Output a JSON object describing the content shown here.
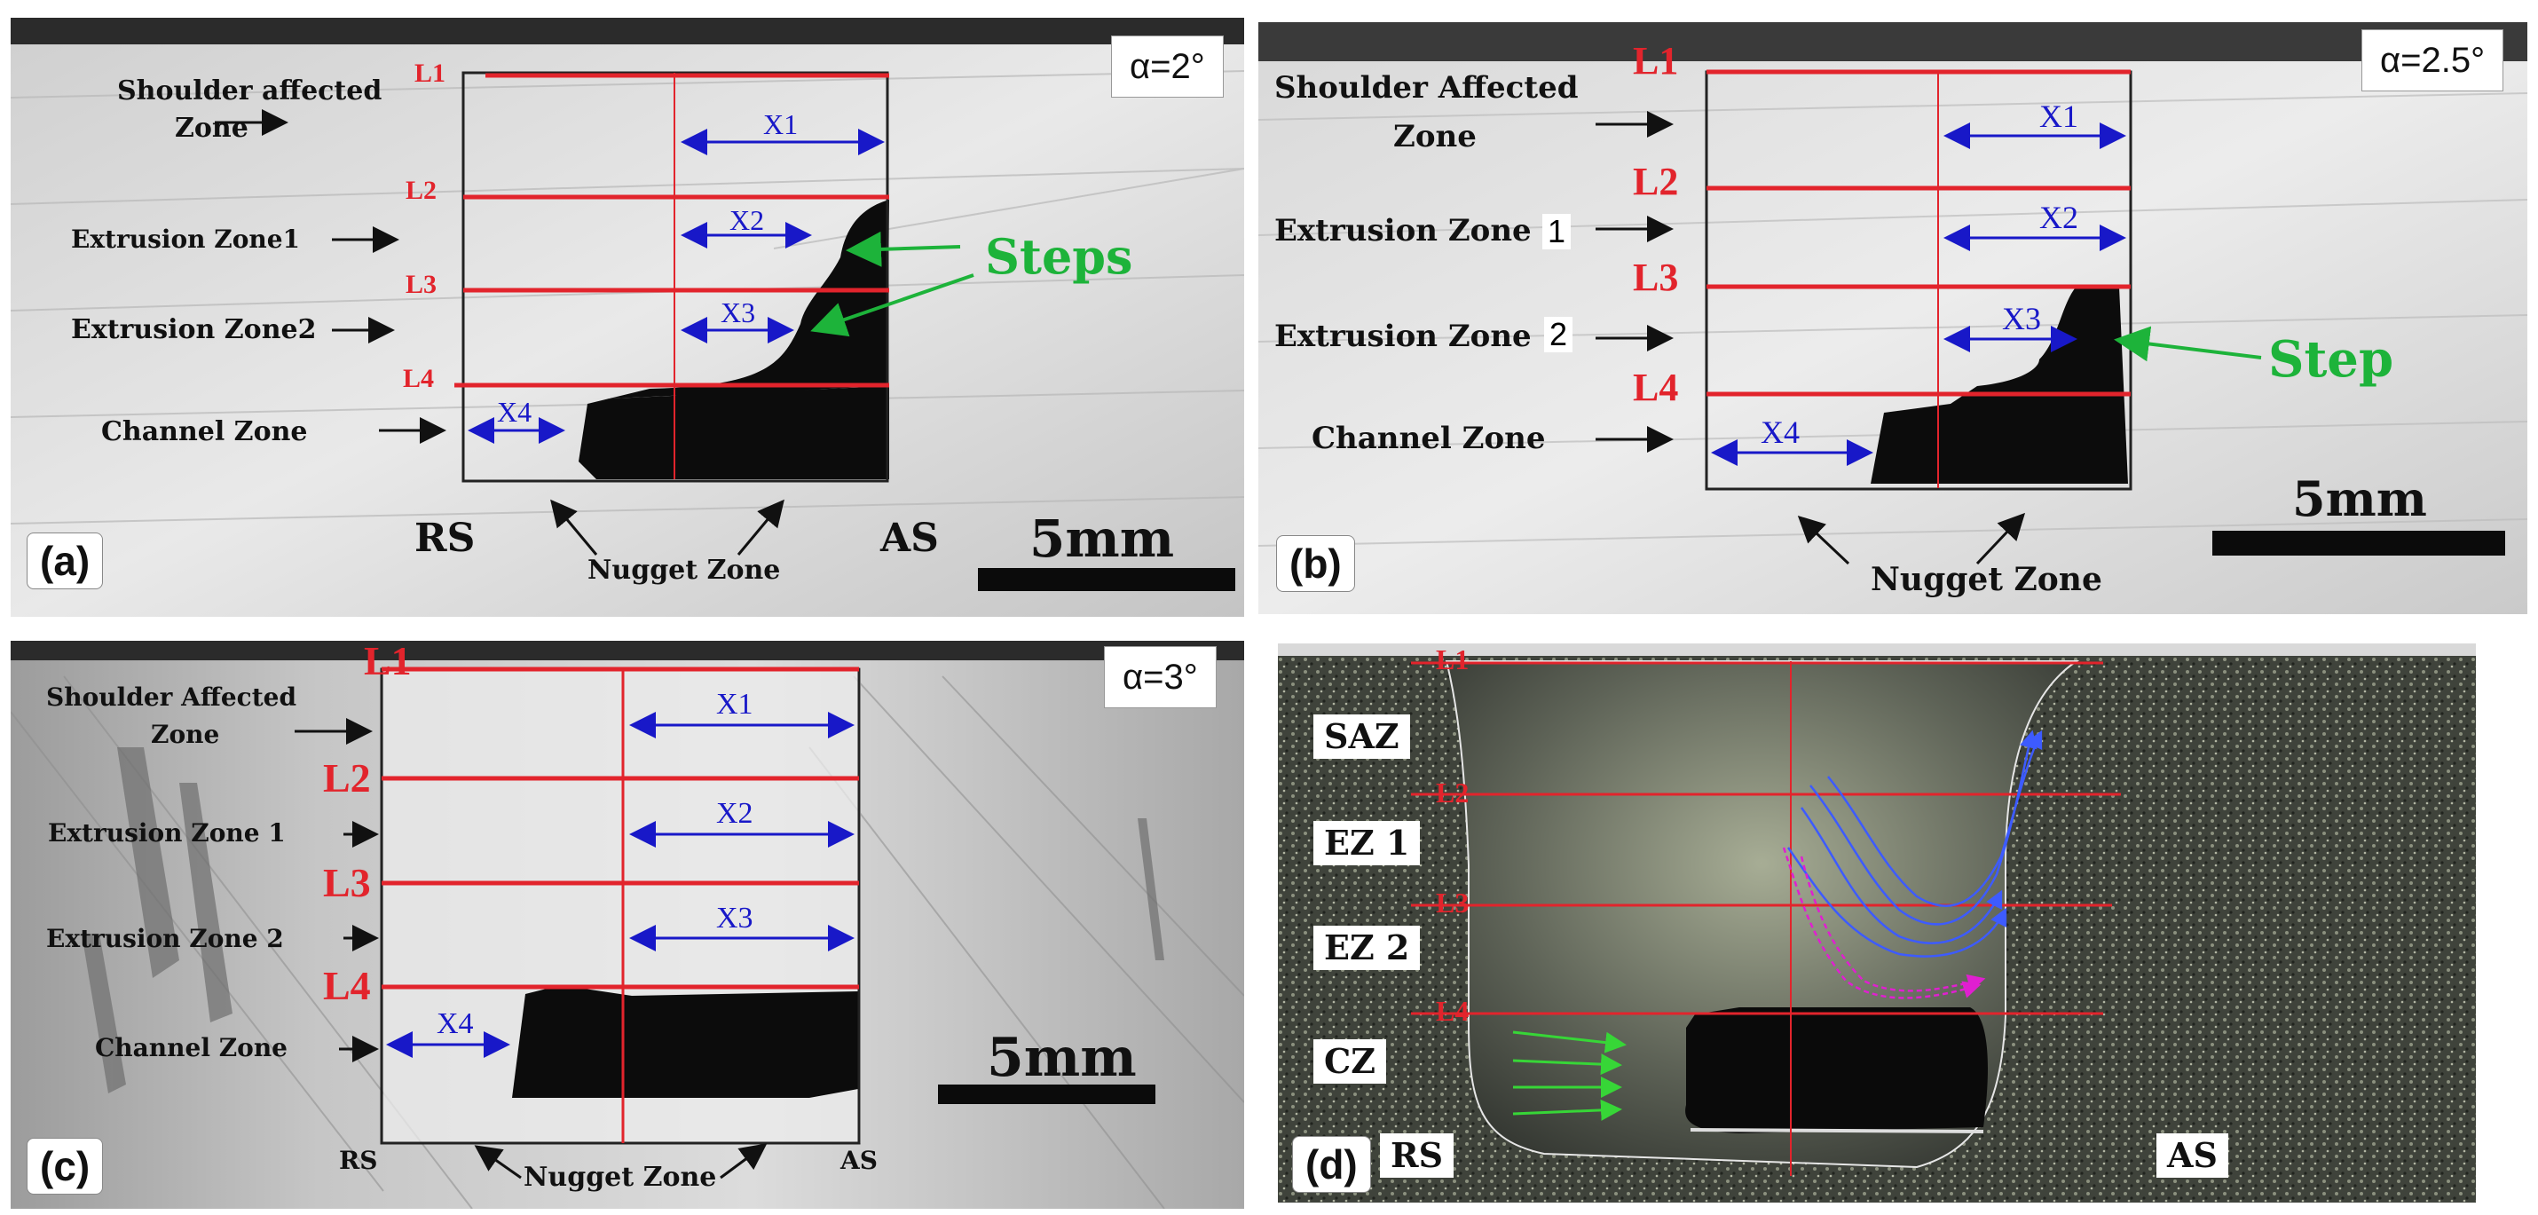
{
  "figure": {
    "panels": [
      {
        "tag": "(a)",
        "alpha": "α=2°",
        "zones": [
          "Shoulder affected",
          "Zone",
          "Extrusion Zone1",
          "Extrusion Zone2",
          "Channel Zone"
        ],
        "levels": [
          "L1",
          "L2",
          "L3",
          "L4"
        ],
        "widths": [
          "X1",
          "X2",
          "X3",
          "X4"
        ],
        "rs": "RS",
        "as": "AS",
        "nugget": "Nugget Zone",
        "scale": "5mm",
        "callout": "Steps"
      },
      {
        "tag": "(b)",
        "alpha": "α=2.5°",
        "zones": [
          "Shoulder Affected",
          "Zone",
          "Extrusion Zone",
          "1",
          "Extrusion Zone",
          "2",
          "Channel Zone"
        ],
        "levels": [
          "L1",
          "L2",
          "L3",
          "L4"
        ],
        "widths": [
          "X1",
          "X2",
          "X3",
          "X4"
        ],
        "nugget": "Nugget Zone",
        "scale": "5mm",
        "callout": "Step"
      },
      {
        "tag": "(c)",
        "alpha": "α=3°",
        "zones": [
          "Shoulder Affected",
          "Zone",
          "Extrusion Zone 1",
          "Extrusion Zone 2",
          "Channel Zone"
        ],
        "levels": [
          "L1",
          "L2",
          "L3",
          "L4"
        ],
        "widths": [
          "X1",
          "X2",
          "X3",
          "X4"
        ],
        "rs": "RS",
        "as": "AS",
        "nugget": "Nugget Zone",
        "scale": "5mm"
      },
      {
        "tag": "(d)",
        "zones": [
          "SAZ",
          "EZ 1",
          "EZ 2",
          "CZ"
        ],
        "levels": [
          "L1",
          "L2",
          "L3",
          "L4"
        ],
        "rs": "RS",
        "as": "AS"
      }
    ]
  }
}
